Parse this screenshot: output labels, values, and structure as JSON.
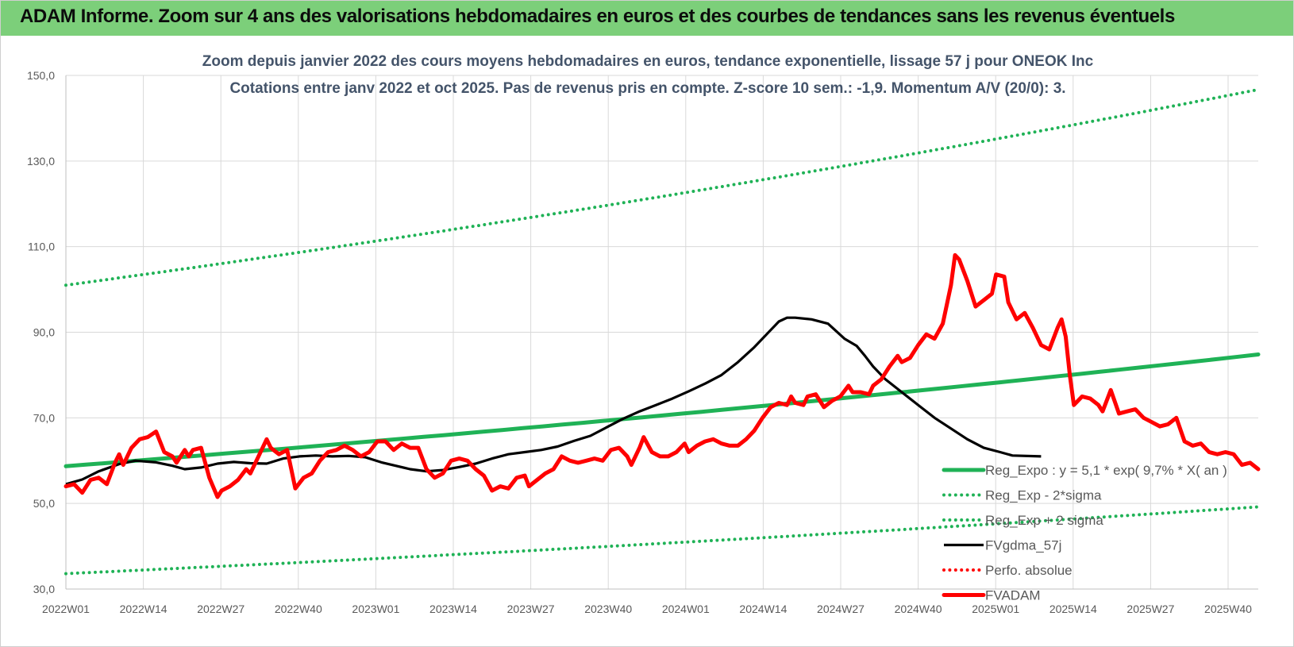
{
  "header": {
    "title": "ADAM Informe. Zoom sur 4 ans des valorisations hebdomadaires en euros et des courbes de tendances sans les revenus éventuels"
  },
  "colors": {
    "banner": "#7ccf7a",
    "trend": "#1fb256",
    "black": "#000000",
    "red": "#ff0000",
    "grid": "#d9d9d9",
    "subtitle": "#44546a"
  },
  "chart_data": {
    "type": "line",
    "title_lines": [
      "Zoom depuis janvier 2022 des cours moyens hebdomadaires en euros, tendance exponentielle, lissage 57 j pour ONEOK Inc",
      "Cotations entre janv 2022 et oct 2025. Pas de revenus pris en compte. Z-score 10 sem.: -1,9.  Momentum A/V (20/0): 3."
    ],
    "x_ticks": [
      "2022W01",
      "2022W14",
      "2022W27",
      "2022W40",
      "2023W01",
      "2023W14",
      "2023W27",
      "2023W40",
      "2024W01",
      "2024W14",
      "2024W27",
      "2024W40",
      "2025W01",
      "2025W14",
      "2025W27",
      "2025W40"
    ],
    "y_ticks": [
      "30,0",
      "50,0",
      "70,0",
      "90,0",
      "110,0",
      "130,0",
      "150,0"
    ],
    "ylim": [
      30,
      150
    ],
    "n_weeks": 199,
    "grid": true,
    "legend_position": "bottom-right",
    "series": [
      {
        "name": "Reg_Expo : y = 5,1 * exp( 9,7% * X( an )",
        "style": "solid-thick",
        "color": "#1fb256",
        "points": [
          [
            0,
            58.7
          ],
          [
            198,
            84.8
          ]
        ]
      },
      {
        "name": "Reg_Exp - 2*sigma",
        "style": "dotted",
        "color": "#1fb256",
        "points": [
          [
            0,
            33.6
          ],
          [
            198,
            49.2
          ]
        ]
      },
      {
        "name": "Reg_Exp + 2 sigma",
        "style": "dotted",
        "color": "#1fb256",
        "points": [
          [
            0,
            101.0
          ],
          [
            198,
            146.7
          ]
        ]
      },
      {
        "name": "FVgdma_57j",
        "style": "solid",
        "color": "#000000",
        "points": [
          [
            0,
            54.5
          ],
          [
            4,
            55.6
          ],
          [
            8,
            57.5
          ],
          [
            13,
            59.2
          ],
          [
            17,
            60.0
          ],
          [
            22,
            59.6
          ],
          [
            26,
            58.8
          ],
          [
            29,
            58.0
          ],
          [
            33,
            58.4
          ],
          [
            37,
            59.3
          ],
          [
            41,
            59.7
          ],
          [
            45,
            59.4
          ],
          [
            49,
            59.3
          ],
          [
            53,
            60.5
          ],
          [
            57,
            61.0
          ],
          [
            61,
            61.2
          ],
          [
            65,
            61.0
          ],
          [
            69,
            61.1
          ],
          [
            73,
            60.8
          ],
          [
            77,
            59.6
          ],
          [
            81,
            58.7
          ],
          [
            84,
            58.0
          ],
          [
            88,
            57.5
          ],
          [
            92,
            57.8
          ],
          [
            96,
            58.5
          ],
          [
            100,
            59.3
          ],
          [
            104,
            60.5
          ],
          [
            108,
            61.5
          ],
          [
            112,
            62.0
          ],
          [
            116,
            62.5
          ],
          [
            120,
            63.3
          ],
          [
            124,
            64.6
          ],
          [
            128,
            65.8
          ],
          [
            132,
            67.8
          ],
          [
            136,
            69.8
          ],
          [
            140,
            71.5
          ],
          [
            144,
            73.0
          ],
          [
            148,
            74.5
          ],
          [
            152,
            76.2
          ],
          [
            156,
            78.0
          ],
          [
            160,
            80.0
          ],
          [
            164,
            83.0
          ],
          [
            168,
            86.5
          ],
          [
            171,
            89.5
          ],
          [
            174,
            92.5
          ],
          [
            176,
            93.4
          ],
          [
            178,
            93.4
          ],
          [
            182,
            93.0
          ],
          [
            186,
            92.0
          ],
          [
            190,
            88.5
          ],
          [
            193,
            86.8
          ],
          [
            195,
            84.5
          ],
          [
            197,
            82.0
          ],
          [
            200,
            79.0
          ],
          [
            204,
            76.0
          ],
          [
            208,
            73.0
          ],
          [
            212,
            70.0
          ],
          [
            216,
            67.5
          ],
          [
            220,
            65.0
          ],
          [
            224,
            63.0
          ],
          [
            228,
            62.0
          ],
          [
            231,
            61.2
          ],
          [
            238,
            61.0
          ]
        ]
      },
      {
        "name": "Perfo. absolue",
        "style": "dotted",
        "color": "#ff0000",
        "points": []
      },
      {
        "name": "FVADAM",
        "style": "solid-thick",
        "color": "#ff0000",
        "points": [
          [
            0,
            54.0
          ],
          [
            2,
            54.5
          ],
          [
            4,
            52.5
          ],
          [
            6,
            55.5
          ],
          [
            8,
            56.0
          ],
          [
            10,
            54.5
          ],
          [
            12,
            59.5
          ],
          [
            13,
            61.5
          ],
          [
            14,
            59.0
          ],
          [
            16,
            63.0
          ],
          [
            18,
            65.0
          ],
          [
            20,
            65.5
          ],
          [
            22,
            66.8
          ],
          [
            24,
            62.0
          ],
          [
            26,
            61.0
          ],
          [
            27,
            59.5
          ],
          [
            29,
            62.5
          ],
          [
            30,
            61.0
          ],
          [
            31,
            62.5
          ],
          [
            33,
            63.0
          ],
          [
            35,
            56.0
          ],
          [
            37,
            51.5
          ],
          [
            38,
            53.0
          ],
          [
            40,
            54.0
          ],
          [
            42,
            55.5
          ],
          [
            44,
            58.0
          ],
          [
            45,
            57.0
          ],
          [
            47,
            61.0
          ],
          [
            49,
            65.0
          ],
          [
            50,
            63.0
          ],
          [
            52,
            61.5
          ],
          [
            54,
            62.5
          ],
          [
            55,
            58.0
          ],
          [
            56,
            53.5
          ],
          [
            58,
            56.0
          ],
          [
            60,
            57.0
          ],
          [
            62,
            60.0
          ],
          [
            64,
            62.0
          ],
          [
            66,
            62.5
          ],
          [
            68,
            63.5
          ],
          [
            70,
            62.5
          ],
          [
            72,
            61.0
          ],
          [
            74,
            62.0
          ],
          [
            76,
            64.5
          ],
          [
            78,
            64.5
          ],
          [
            80,
            62.5
          ],
          [
            82,
            64.0
          ],
          [
            84,
            63.0
          ],
          [
            86,
            63.0
          ],
          [
            88,
            58.0
          ],
          [
            90,
            56.0
          ],
          [
            92,
            57.0
          ],
          [
            94,
            60.0
          ],
          [
            96,
            60.5
          ],
          [
            98,
            60.0
          ],
          [
            100,
            58.0
          ],
          [
            102,
            56.5
          ],
          [
            104,
            53.0
          ],
          [
            106,
            54.0
          ],
          [
            108,
            53.5
          ],
          [
            110,
            56.0
          ],
          [
            112,
            56.5
          ],
          [
            113,
            54.0
          ],
          [
            115,
            55.5
          ],
          [
            117,
            57.0
          ],
          [
            119,
            58.0
          ],
          [
            121,
            61.0
          ],
          [
            123,
            60.0
          ],
          [
            125,
            59.5
          ],
          [
            127,
            60.0
          ],
          [
            129,
            60.5
          ],
          [
            131,
            60.0
          ],
          [
            133,
            62.5
          ],
          [
            135,
            63.0
          ],
          [
            137,
            61.0
          ],
          [
            138,
            59.0
          ],
          [
            140,
            63.0
          ],
          [
            141,
            65.5
          ],
          [
            143,
            62.0
          ],
          [
            145,
            61.0
          ],
          [
            147,
            61.0
          ],
          [
            149,
            62.0
          ],
          [
            151,
            64.0
          ],
          [
            152,
            62.0
          ],
          [
            154,
            63.5
          ],
          [
            156,
            64.5
          ],
          [
            158,
            65.0
          ],
          [
            160,
            64.0
          ],
          [
            162,
            63.5
          ],
          [
            164,
            63.5
          ],
          [
            166,
            65.0
          ],
          [
            168,
            67.0
          ],
          [
            170,
            70.0
          ],
          [
            172,
            72.5
          ],
          [
            174,
            73.5
          ],
          [
            176,
            73.0
          ],
          [
            177,
            75.0
          ],
          [
            178,
            73.5
          ],
          [
            180,
            73.0
          ],
          [
            181,
            75.0
          ],
          [
            183,
            75.5
          ],
          [
            185,
            72.5
          ],
          [
            187,
            74.0
          ],
          [
            189,
            75.0
          ],
          [
            191,
            77.5
          ],
          [
            192,
            76.0
          ],
          [
            194,
            76.0
          ],
          [
            196,
            75.5
          ],
          [
            197,
            77.5
          ],
          [
            199,
            79.0
          ],
          [
            201,
            82.0
          ],
          [
            203,
            84.5
          ],
          [
            204,
            83.0
          ],
          [
            206,
            84.0
          ],
          [
            208,
            87.0
          ],
          [
            210,
            89.5
          ],
          [
            212,
            88.5
          ],
          [
            214,
            92.0
          ],
          [
            216,
            101.0
          ],
          [
            217,
            108.0
          ],
          [
            218,
            107.0
          ],
          [
            220,
            102.0
          ],
          [
            222,
            96.0
          ],
          [
            224,
            97.5
          ],
          [
            226,
            99.0
          ],
          [
            227,
            103.5
          ],
          [
            229,
            103.0
          ],
          [
            230,
            97.0
          ],
          [
            232,
            93.0
          ],
          [
            234,
            94.5
          ],
          [
            236,
            91.0
          ],
          [
            238,
            87.0
          ],
          [
            240,
            86.0
          ],
          [
            242,
            91.0
          ],
          [
            243,
            93.0
          ],
          [
            244,
            89.0
          ],
          [
            245,
            80.0
          ],
          [
            246,
            73.0
          ],
          [
            248,
            75.0
          ],
          [
            250,
            74.5
          ],
          [
            252,
            73.0
          ],
          [
            253,
            71.5
          ],
          [
            255,
            76.5
          ],
          [
            257,
            71.0
          ],
          [
            259,
            71.5
          ],
          [
            261,
            72.0
          ],
          [
            263,
            70.0
          ],
          [
            265,
            69.0
          ],
          [
            267,
            68.0
          ],
          [
            269,
            68.5
          ],
          [
            271,
            70.0
          ],
          [
            273,
            64.5
          ],
          [
            275,
            63.5
          ],
          [
            277,
            64.0
          ],
          [
            279,
            62.0
          ],
          [
            281,
            61.5
          ],
          [
            283,
            62.0
          ],
          [
            285,
            61.5
          ],
          [
            287,
            59.0
          ],
          [
            289,
            59.5
          ],
          [
            291,
            58.0
          ]
        ]
      }
    ]
  }
}
